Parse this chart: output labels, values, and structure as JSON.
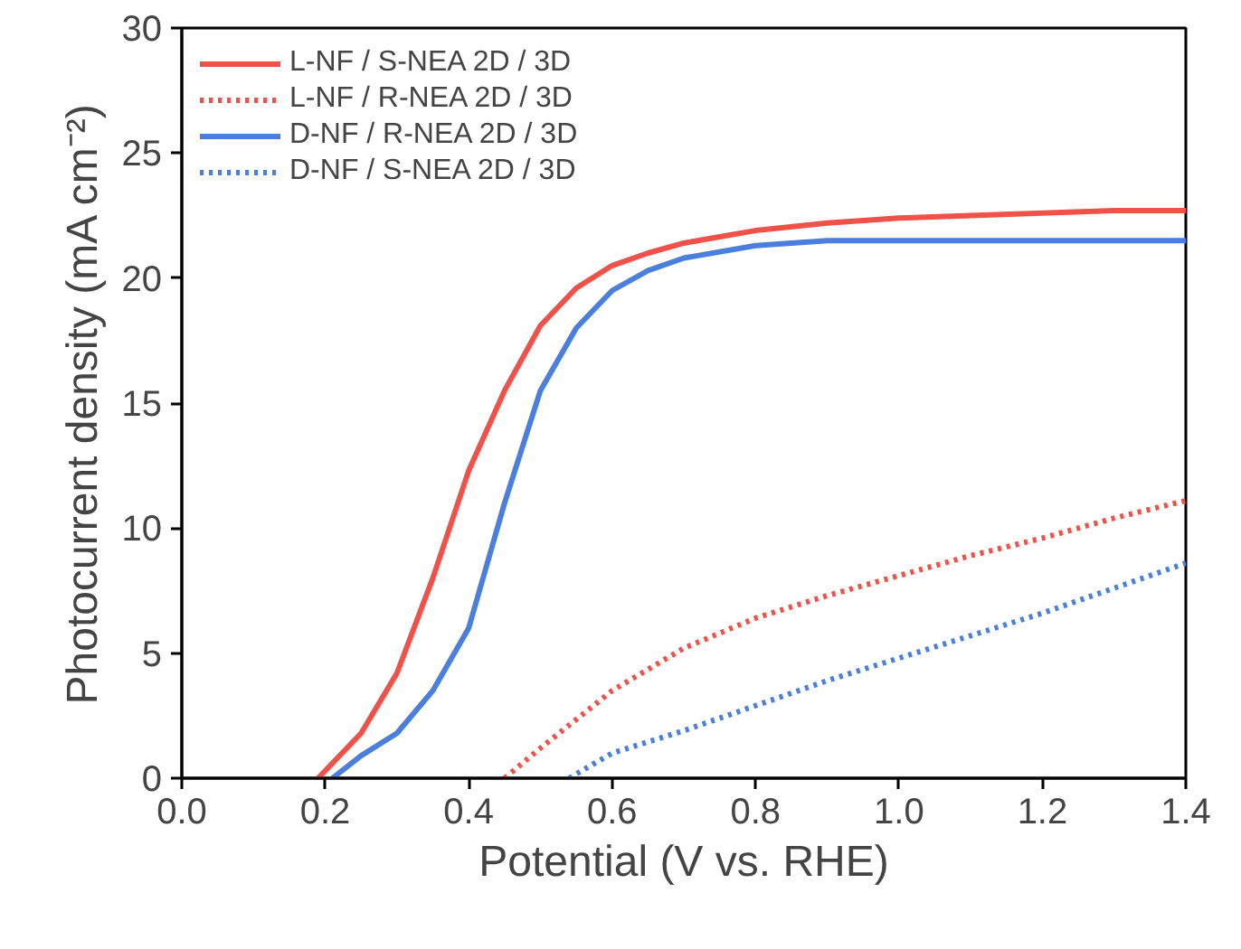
{
  "chart_data": {
    "type": "line",
    "xlabel": "Potential (V vs. RHE)",
    "ylabel": "Photocurrent density (mA cm⁻²)",
    "xlim": [
      0,
      1.4
    ],
    "ylim": [
      0,
      30
    ],
    "xticks": [
      {
        "value": 0,
        "label": "0.0"
      },
      {
        "value": 0.2,
        "label": "0.2"
      },
      {
        "value": 0.4,
        "label": "0.4"
      },
      {
        "value": 0.6,
        "label": "0.6"
      },
      {
        "value": 0.8,
        "label": "0.8"
      },
      {
        "value": 1.0,
        "label": "1.0"
      },
      {
        "value": 1.2,
        "label": "1.2"
      },
      {
        "value": 1.4,
        "label": "1.4"
      }
    ],
    "yticks": [
      0,
      5,
      10,
      15,
      20,
      25,
      30
    ],
    "grid": false,
    "legend": "top left",
    "marker": "none",
    "series": [
      {
        "name": "L-NF / S-NEA 2D / 3D",
        "color": "#f0524a",
        "line_style": "solid",
        "x": [
          0.19,
          0.25,
          0.3,
          0.35,
          0.4,
          0.45,
          0.5,
          0.55,
          0.6,
          0.65,
          0.7,
          0.8,
          0.9,
          1.0,
          1.1,
          1.2,
          1.3,
          1.4
        ],
        "values": [
          0,
          1.8,
          4.2,
          8,
          12.3,
          15.5,
          18.1,
          19.6,
          20.5,
          21,
          21.4,
          21.9,
          22.2,
          22.4,
          22.5,
          22.6,
          22.7,
          22.7
        ]
      },
      {
        "name": "L-NF / R-NEA 2D / 3D",
        "color": "#f0524a",
        "line_style": "dotted",
        "x": [
          0.45,
          0.5,
          0.6,
          0.7,
          0.8,
          0.9,
          1.0,
          1.1,
          1.2,
          1.3,
          1.4
        ],
        "values": [
          0,
          1.2,
          3.5,
          5.2,
          6.4,
          7.3,
          8.1,
          8.9,
          9.6,
          10.4,
          11.1
        ]
      },
      {
        "name": "D-NF / R-NEA 2D / 3D",
        "color": "#4a7fde",
        "line_style": "solid",
        "x": [
          0.21,
          0.25,
          0.3,
          0.35,
          0.4,
          0.45,
          0.5,
          0.55,
          0.6,
          0.65,
          0.7,
          0.8,
          0.9,
          1.0,
          1.2,
          1.4
        ],
        "values": [
          0,
          0.9,
          1.8,
          3.5,
          6,
          11,
          15.5,
          18,
          19.5,
          20.3,
          20.8,
          21.3,
          21.5,
          21.5,
          21.5,
          21.5
        ]
      },
      {
        "name": "D-NF / S-NEA 2D / 3D",
        "color": "#4a7fde",
        "line_style": "dotted",
        "x": [
          0.54,
          0.6,
          0.7,
          0.8,
          0.9,
          1.0,
          1.1,
          1.2,
          1.3,
          1.4
        ],
        "values": [
          0,
          1,
          1.9,
          2.9,
          3.9,
          4.8,
          5.7,
          6.6,
          7.6,
          8.6
        ]
      }
    ]
  }
}
